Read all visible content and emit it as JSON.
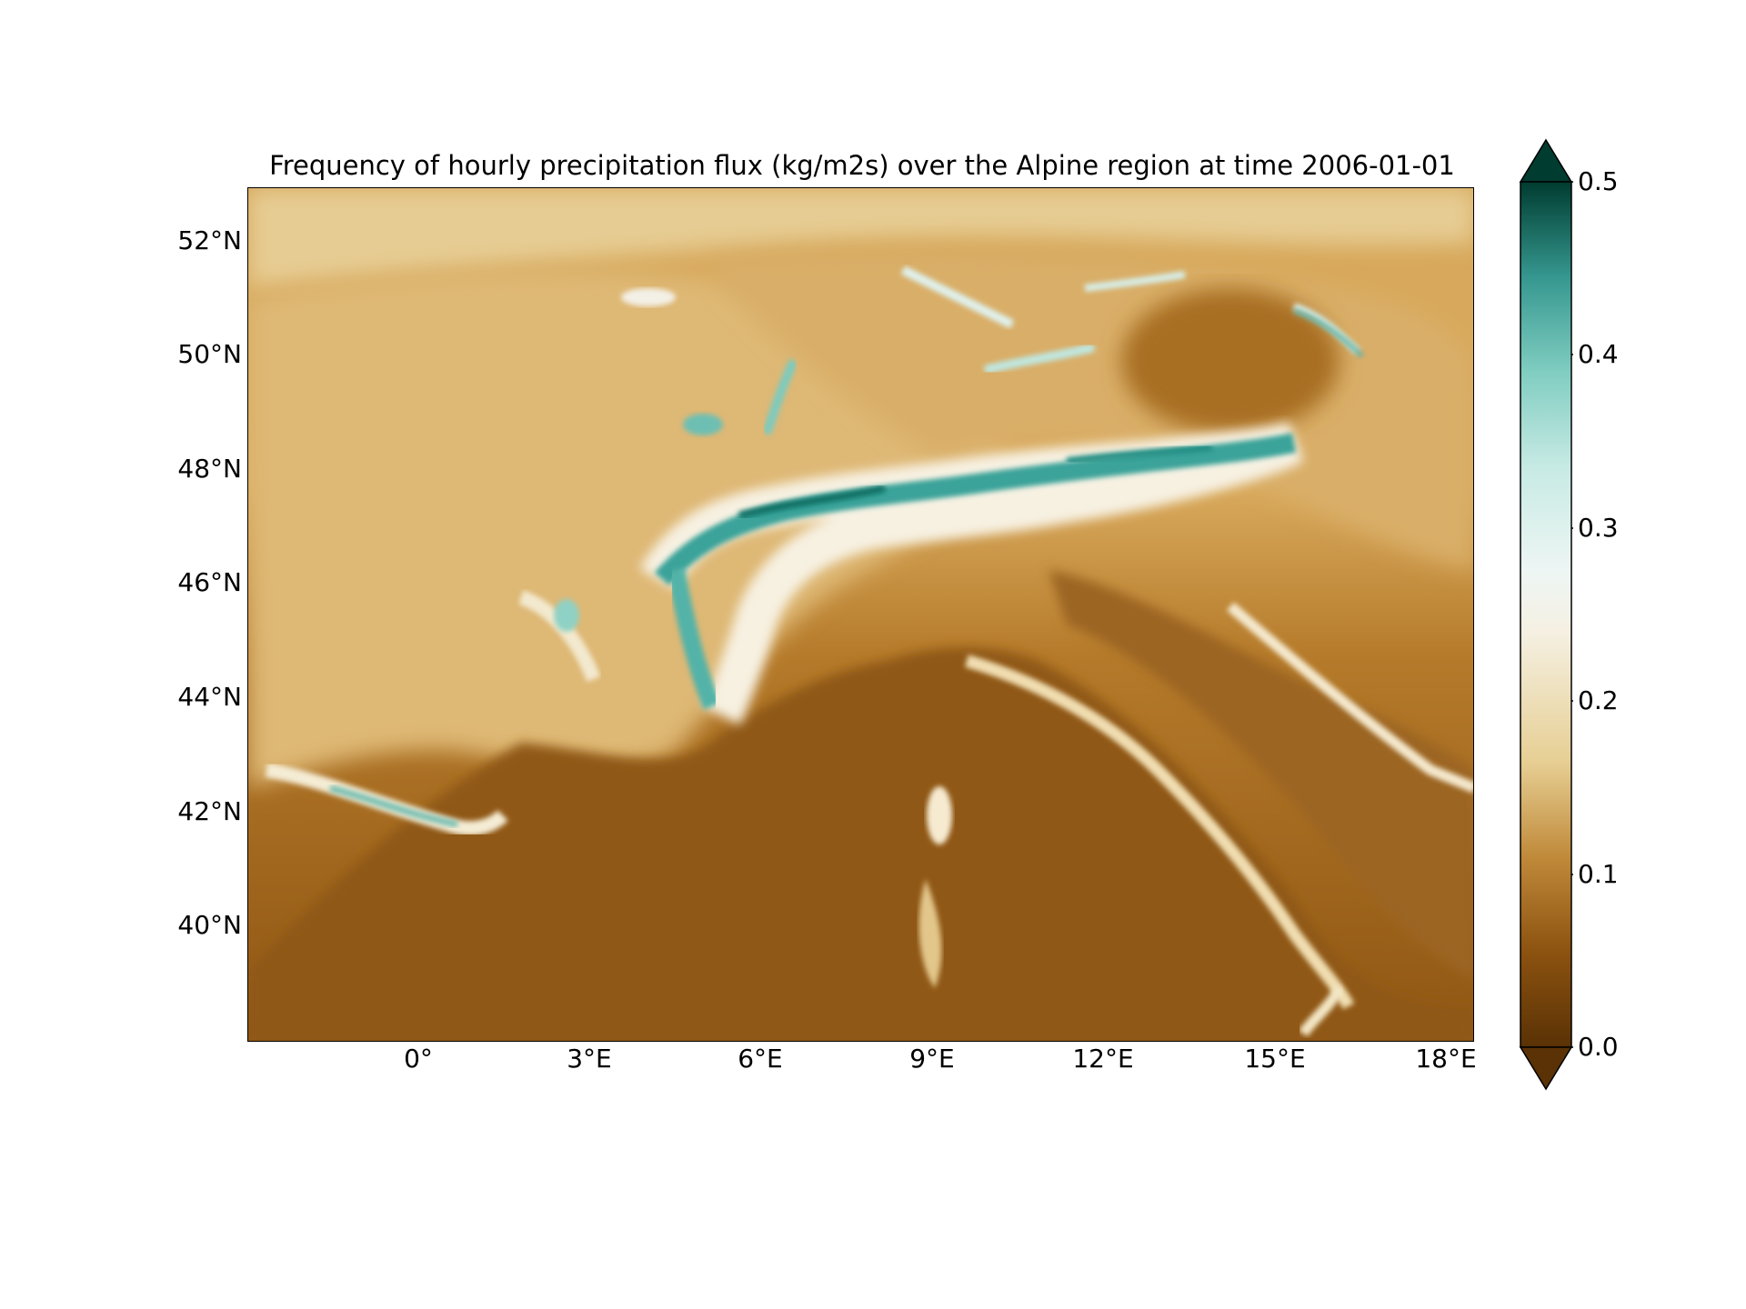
{
  "figure": {
    "title": "Frequency of hourly precipitation flux (kg/m2s) over the Alpine region at time 2006-01-01"
  },
  "map": {
    "y_ticks": [
      "52°N",
      "50°N",
      "48°N",
      "46°N",
      "44°N",
      "42°N",
      "40°N"
    ],
    "x_ticks": [
      "0°",
      "3°E",
      "6°E",
      "9°E",
      "12°E",
      "15°E",
      "18°E"
    ]
  },
  "colorbar": {
    "ticks": [
      "0.5",
      "0.4",
      "0.3",
      "0.2",
      "0.1",
      "0.0"
    ],
    "range": [
      0.0,
      0.5
    ],
    "extend": "both",
    "colormap": "BrBG",
    "colors": [
      "#5a3205",
      "#8c5210",
      "#c08a3a",
      "#e7cf94",
      "#f5f0e2",
      "#c7eae4",
      "#80cdc1",
      "#35978f",
      "#01665e",
      "#003c30"
    ]
  }
}
